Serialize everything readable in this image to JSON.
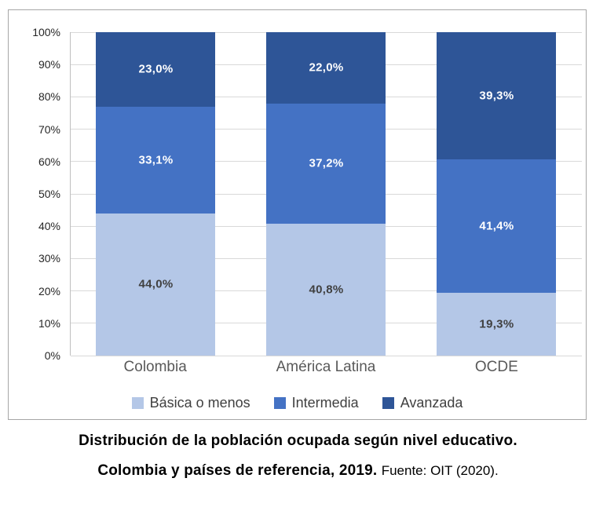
{
  "chart_data": {
    "type": "bar",
    "stacked": true,
    "categories": [
      "Colombia",
      "América Latina",
      "OCDE"
    ],
    "series": [
      {
        "name": "Básica o menos",
        "color": "#b4c7e7",
        "label_color": "#404040",
        "values": [
          44.0,
          40.8,
          19.3
        ],
        "labels": [
          "44,0%",
          "40,8%",
          "19,3%"
        ]
      },
      {
        "name": "Intermedia",
        "color": "#4472c4",
        "label_color": "#ffffff",
        "values": [
          33.1,
          37.2,
          41.4
        ],
        "labels": [
          "33,1%",
          "37,2%",
          "41,4%"
        ]
      },
      {
        "name": "Avanzada",
        "color": "#2e5597",
        "label_color": "#ffffff",
        "values": [
          23.0,
          22.0,
          39.3
        ],
        "labels": [
          "23,0%",
          "22,0%",
          "39,3%"
        ]
      }
    ],
    "y_ticks": [
      "100%",
      "90%",
      "80%",
      "70%",
      "60%",
      "50%",
      "40%",
      "30%",
      "20%",
      "10%",
      "0%"
    ],
    "ylim": [
      0,
      100
    ],
    "grid": true,
    "legend_position": "bottom",
    "title": "Distribución de la población ocupada según nivel educativo. Colombia y países de referencia, 2019."
  },
  "caption": {
    "line1": "Distribución de la población ocupada según nivel educativo.",
    "line2_bold": "Colombia y países de referencia, 2019.",
    "line2_normal": "Fuente: OIT (2020)."
  }
}
